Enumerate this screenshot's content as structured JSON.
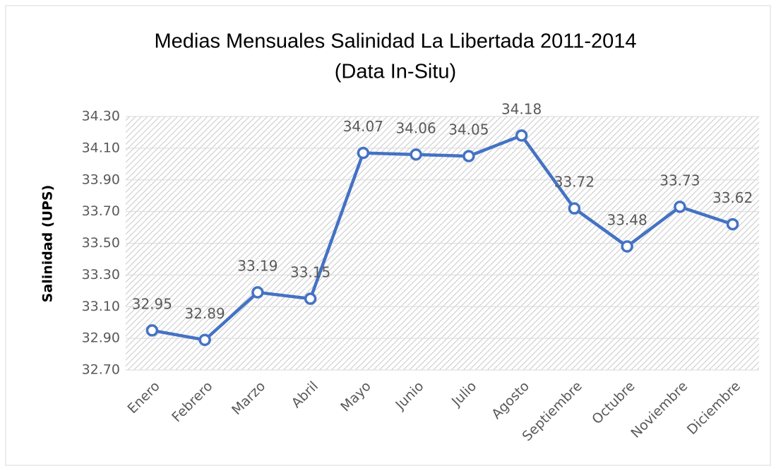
{
  "chart_data": {
    "type": "line",
    "title": "Medias Mensuales Salinidad La Libertada 2011-2014",
    "subtitle": "(Data In-Situ)",
    "y_label": "Salinidad (UPS)",
    "categories": [
      "Enero",
      "Febrero",
      "Marzo",
      "Abril",
      "Mayo",
      "Junio",
      "Julio",
      "Agosto",
      "Septiembre",
      "Octubre",
      "Noviembre",
      "Diciembre"
    ],
    "series": [
      {
        "name": "Salinidad",
        "color": "#4472c4",
        "values": [
          32.95,
          32.89,
          33.19,
          33.15,
          34.07,
          34.06,
          34.05,
          34.18,
          33.72,
          33.48,
          33.73,
          33.62
        ]
      }
    ],
    "ylim": [
      32.7,
      34.3
    ],
    "yticks": [
      {
        "value": 32.7,
        "label": "32.70"
      },
      {
        "value": 32.9,
        "label": "32.90"
      },
      {
        "value": 33.1,
        "label": "33.10"
      },
      {
        "value": 33.3,
        "label": "33.30"
      },
      {
        "value": 33.5,
        "label": "33.50"
      },
      {
        "value": 33.7,
        "label": "33.70"
      },
      {
        "value": 33.9,
        "label": "33.90"
      },
      {
        "value": 34.1,
        "label": "34.10"
      },
      {
        "value": 34.3,
        "label": "34.30"
      }
    ],
    "grid": true
  }
}
